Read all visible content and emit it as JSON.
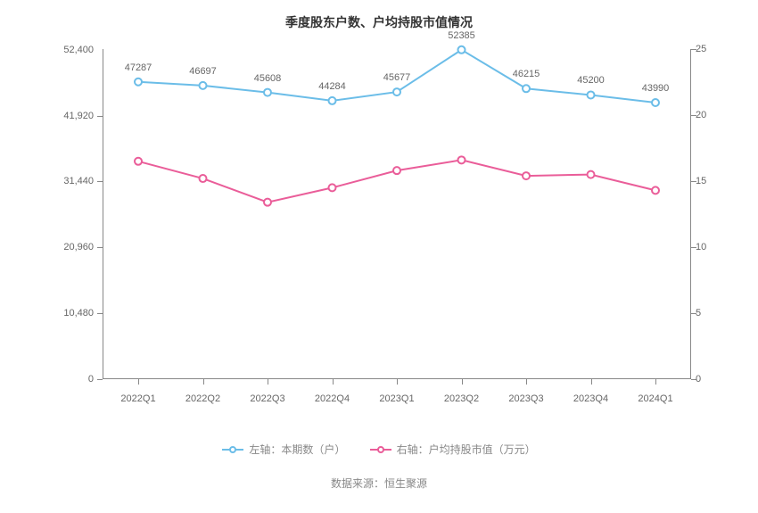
{
  "title": "季度股东户数、户均持股市值情况",
  "source": "数据来源：恒生聚源",
  "background_color": "#ffffff",
  "text_color": "#666666",
  "axis_color": "#888888",
  "categories": [
    "2022Q1",
    "2022Q2",
    "2022Q3",
    "2022Q4",
    "2023Q1",
    "2023Q2",
    "2023Q3",
    "2023Q4",
    "2024Q1"
  ],
  "left_axis": {
    "min": 0,
    "max": 52500,
    "ticks": [
      0,
      10480,
      20960,
      31440,
      41920
    ],
    "tick_labels": [
      "0",
      "10,480",
      "20,960",
      "31,440",
      "41,920"
    ],
    "extra_tick": 52400,
    "extra_tick_label": "52,400"
  },
  "right_axis": {
    "min": 0,
    "max": 25,
    "ticks": [
      0,
      5,
      10,
      15,
      20,
      25
    ],
    "tick_labels": [
      "0",
      "5",
      "10",
      "15",
      "20",
      "25"
    ]
  },
  "series1": {
    "name": "左轴：本期数（户）",
    "color": "#6bbde8",
    "values": [
      47287,
      46697,
      45608,
      44284,
      45677,
      52385,
      46215,
      45200,
      43990
    ],
    "labels": [
      "47287",
      "46697",
      "45608",
      "44284",
      "45677",
      "52385",
      "46215",
      "45200",
      "43990"
    ],
    "line_width": 2,
    "marker_radius": 4
  },
  "series2": {
    "name": "右轴：户均持股市值（万元）",
    "color": "#ea5d99",
    "values": [
      16.5,
      15.2,
      13.4,
      14.5,
      15.8,
      16.6,
      15.4,
      15.5,
      14.3
    ],
    "line_width": 2,
    "marker_radius": 4
  },
  "legend": {
    "item1_label": "左轴：本期数（户）",
    "item2_label": "右轴：户均持股市值（万元）"
  }
}
